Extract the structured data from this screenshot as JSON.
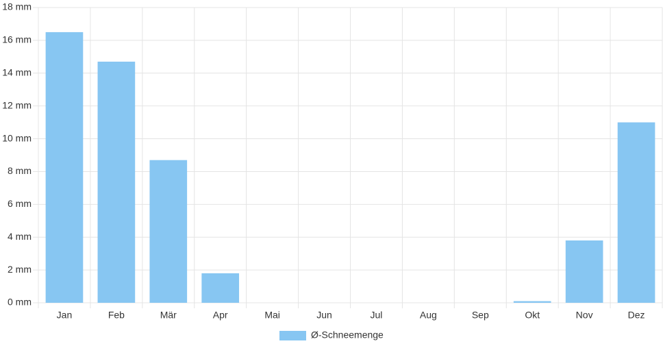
{
  "chart_data": {
    "type": "bar",
    "categories": [
      "Jan",
      "Feb",
      "Mär",
      "Apr",
      "Mai",
      "Jun",
      "Jul",
      "Aug",
      "Sep",
      "Okt",
      "Nov",
      "Dez"
    ],
    "series": [
      {
        "name": "Ø-Schneemenge",
        "color": "#87c6f2",
        "values": [
          16.5,
          14.7,
          8.7,
          1.8,
          0,
          0,
          0,
          0,
          0,
          0.1,
          3.8,
          11
        ]
      }
    ],
    "ylim": [
      0,
      18
    ],
    "yticks": [
      {
        "value": 0,
        "label": "0 mm"
      },
      {
        "value": 2,
        "label": "2 mm"
      },
      {
        "value": 4,
        "label": "4 mm"
      },
      {
        "value": 6,
        "label": "6 mm"
      },
      {
        "value": 8,
        "label": "8 mm"
      },
      {
        "value": 10,
        "label": "10 mm"
      },
      {
        "value": 12,
        "label": "12 mm"
      },
      {
        "value": 14,
        "label": "14 mm"
      },
      {
        "value": 16,
        "label": "16 mm"
      },
      {
        "value": 18,
        "label": "18 mm"
      }
    ],
    "grid": true,
    "legend": "bottom"
  }
}
